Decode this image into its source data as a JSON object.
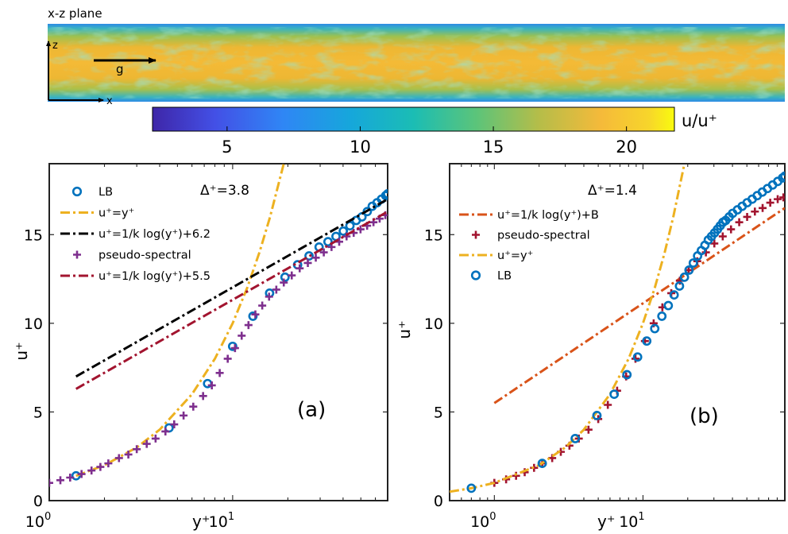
{
  "colors": {
    "lb": "#0072BD",
    "linear": "#EDB120",
    "log_black": "#000000",
    "pseudo": "#7E2F8E",
    "log_dark_red": "#A2142F",
    "log_orange": "#D95319",
    "pseudo_b": "#A2142F"
  },
  "snapshot": {
    "plane_label": "x-z plane",
    "axis_z": "z",
    "axis_x": "x",
    "gravity": "g",
    "colorbar": {
      "label": "u/u⁺",
      "range": [
        2.2,
        21.8
      ],
      "ticks": [
        "5",
        "10",
        "15",
        "20"
      ],
      "colormap": "parula"
    }
  },
  "chart_data": [
    {
      "type": "scatter",
      "panel_label": "(a)",
      "annotation": "Δ⁺=3.8",
      "xlabel": "y⁺",
      "ylabel": "u⁺",
      "x_scale": "log",
      "xlim": [
        1,
        70
      ],
      "ylim": [
        0,
        19
      ],
      "xticks": [
        {
          "value": 1,
          "base": "10",
          "exp": "0"
        },
        {
          "value": 10,
          "base": "10",
          "exp": "1"
        }
      ],
      "yticks": [
        "0",
        "5",
        "10",
        "15"
      ],
      "legend_position": "top-left",
      "series": [
        {
          "name": "LB",
          "kind": "markers",
          "marker": "circle",
          "color_key": "lb",
          "points": [
            [
              1.4,
              1.4
            ],
            [
              4.5,
              4.1
            ],
            [
              7.3,
              6.6
            ],
            [
              10.0,
              8.7
            ],
            [
              12.9,
              10.4
            ],
            [
              15.9,
              11.7
            ],
            [
              19.3,
              12.6
            ],
            [
              22.6,
              13.3
            ],
            [
              26.1,
              13.8
            ],
            [
              29.6,
              14.3
            ],
            [
              33.1,
              14.6
            ],
            [
              36.6,
              14.9
            ],
            [
              40.1,
              15.2
            ],
            [
              43.6,
              15.5
            ],
            [
              47.2,
              15.8
            ],
            [
              50.7,
              16.0
            ],
            [
              54.2,
              16.3
            ],
            [
              57.7,
              16.6
            ],
            [
              61.3,
              16.8
            ],
            [
              64.8,
              17.0
            ],
            [
              68.3,
              17.2
            ],
            [
              70.0,
              17.3
            ]
          ]
        },
        {
          "name": "u⁺=y⁺",
          "kind": "line",
          "dash": "dashdot",
          "color_key": "linear",
          "points": [
            [
              1.4,
              1.4
            ],
            [
              2,
              2
            ],
            [
              3,
              3
            ],
            [
              4,
              4
            ],
            [
              6,
              6
            ],
            [
              8,
              8
            ],
            [
              10,
              10
            ],
            [
              12,
              12
            ],
            [
              14,
              14
            ],
            [
              16,
              16
            ],
            [
              19,
              19
            ]
          ]
        },
        {
          "name": "u⁺=1/k log(y⁺)+6.2",
          "kind": "line",
          "dash": "dashdot",
          "color_key": "log_black",
          "points": [
            [
              1.4,
              7.0
            ],
            [
              70.0,
              17.0
            ]
          ]
        },
        {
          "name": "pseudo-spectral",
          "kind": "markers",
          "marker": "plus",
          "color_key": "pseudo",
          "points": [
            [
              1.0,
              1.0
            ],
            [
              1.15,
              1.15
            ],
            [
              1.3,
              1.3
            ],
            [
              1.5,
              1.5
            ],
            [
              1.7,
              1.7
            ],
            [
              1.9,
              1.9
            ],
            [
              2.1,
              2.1
            ],
            [
              2.4,
              2.4
            ],
            [
              2.7,
              2.6
            ],
            [
              3.0,
              2.9
            ],
            [
              3.4,
              3.2
            ],
            [
              3.8,
              3.5
            ],
            [
              4.3,
              3.9
            ],
            [
              4.8,
              4.3
            ],
            [
              5.4,
              4.8
            ],
            [
              6.1,
              5.3
            ],
            [
              6.9,
              5.9
            ],
            [
              7.7,
              6.5
            ],
            [
              8.5,
              7.2
            ],
            [
              9.4,
              8.0
            ],
            [
              10.3,
              8.6
            ],
            [
              11.2,
              9.3
            ],
            [
              12.2,
              9.9
            ],
            [
              13.3,
              10.5
            ],
            [
              14.5,
              11.0
            ],
            [
              15.8,
              11.5
            ],
            [
              17.3,
              11.9
            ],
            [
              19.0,
              12.3
            ],
            [
              21.0,
              12.7
            ],
            [
              23.2,
              13.1
            ],
            [
              25.7,
              13.4
            ],
            [
              28.4,
              13.7
            ],
            [
              31.4,
              14.0
            ],
            [
              34.6,
              14.3
            ],
            [
              38.1,
              14.6
            ],
            [
              41.8,
              14.9
            ],
            [
              45.7,
              15.1
            ],
            [
              49.8,
              15.3
            ],
            [
              54.1,
              15.5
            ],
            [
              58.6,
              15.7
            ],
            [
              63.3,
              15.9
            ],
            [
              68.0,
              16.1
            ]
          ]
        },
        {
          "name": "u⁺=1/k log(y⁺)+5.5",
          "kind": "line",
          "dash": "dashdot",
          "color_key": "log_dark_red",
          "points": [
            [
              1.4,
              6.3
            ],
            [
              70.0,
              16.3
            ]
          ]
        }
      ]
    },
    {
      "type": "scatter",
      "panel_label": "(b)",
      "annotation": "Δ⁺=1.4",
      "xlabel": "y⁺",
      "ylabel": "u⁺",
      "x_scale": "log",
      "xlim": [
        0.5,
        90
      ],
      "ylim": [
        0,
        19
      ],
      "xticks": [
        {
          "value": 1,
          "base": "10",
          "exp": "0"
        },
        {
          "value": 10,
          "base": "10",
          "exp": "1"
        }
      ],
      "yticks": [
        "0",
        "5",
        "10",
        "15"
      ],
      "legend_position": "top-left",
      "series": [
        {
          "name": "u⁺=1/k log(y⁺)+B",
          "kind": "line",
          "dash": "dashdot",
          "color_key": "log_orange",
          "points": [
            [
              1.0,
              5.5
            ],
            [
              90.0,
              16.5
            ]
          ]
        },
        {
          "name": "pseudo-spectral",
          "kind": "markers",
          "marker": "plus",
          "color_key": "pseudo_b",
          "points": [
            [
              1.0,
              1.0
            ],
            [
              1.2,
              1.2
            ],
            [
              1.4,
              1.4
            ],
            [
              1.6,
              1.6
            ],
            [
              1.85,
              1.85
            ],
            [
              2.1,
              2.1
            ],
            [
              2.45,
              2.4
            ],
            [
              2.8,
              2.75
            ],
            [
              3.2,
              3.1
            ],
            [
              3.7,
              3.5
            ],
            [
              4.3,
              4.0
            ],
            [
              5.0,
              4.6
            ],
            [
              5.8,
              5.4
            ],
            [
              6.7,
              6.2
            ],
            [
              7.7,
              7.0
            ],
            [
              8.9,
              8.0
            ],
            [
              10.3,
              9.0
            ],
            [
              11.8,
              10.0
            ],
            [
              13.5,
              10.9
            ],
            [
              15.5,
              11.7
            ],
            [
              17.7,
              12.4
            ],
            [
              20.3,
              13.0
            ],
            [
              23.2,
              13.5
            ],
            [
              26.5,
              14.0
            ],
            [
              30.2,
              14.5
            ],
            [
              34.4,
              14.9
            ],
            [
              39.1,
              15.3
            ],
            [
              44.4,
              15.7
            ],
            [
              50.2,
              16.0
            ],
            [
              56.6,
              16.3
            ],
            [
              63.8,
              16.5
            ],
            [
              71.8,
              16.8
            ],
            [
              80.6,
              17.0
            ],
            [
              88.0,
              17.1
            ]
          ]
        },
        {
          "name": "u⁺=y⁺",
          "kind": "line",
          "dash": "dashdot",
          "color_key": "linear",
          "points": [
            [
              0.5,
              0.5
            ],
            [
              0.7,
              0.7
            ],
            [
              1,
              1
            ],
            [
              2,
              2
            ],
            [
              3,
              3
            ],
            [
              4,
              4
            ],
            [
              6,
              6
            ],
            [
              8,
              8
            ],
            [
              10,
              10
            ],
            [
              12,
              12
            ],
            [
              14,
              14
            ],
            [
              16,
              16
            ],
            [
              19,
              19
            ]
          ]
        },
        {
          "name": "LB",
          "kind": "markers",
          "marker": "circle",
          "color_key": "lb",
          "points": [
            [
              0.7,
              0.7
            ],
            [
              2.1,
              2.1
            ],
            [
              3.5,
              3.5
            ],
            [
              4.9,
              4.8
            ],
            [
              6.4,
              6.0
            ],
            [
              7.8,
              7.1
            ],
            [
              9.2,
              8.1
            ],
            [
              10.6,
              9.0
            ],
            [
              12.0,
              9.7
            ],
            [
              13.4,
              10.4
            ],
            [
              14.8,
              11.0
            ],
            [
              16.2,
              11.6
            ],
            [
              17.6,
              12.1
            ],
            [
              19.0,
              12.6
            ],
            [
              20.4,
              13.0
            ],
            [
              21.8,
              13.4
            ],
            [
              23.3,
              13.8
            ],
            [
              24.7,
              14.1
            ],
            [
              26.1,
              14.4
            ],
            [
              27.5,
              14.7
            ],
            [
              28.9,
              14.9
            ],
            [
              30.3,
              15.1
            ],
            [
              31.7,
              15.3
            ],
            [
              33.1,
              15.5
            ],
            [
              34.5,
              15.7
            ],
            [
              36.0,
              15.8
            ],
            [
              38.0,
              16.0
            ],
            [
              40.1,
              16.2
            ],
            [
              43.2,
              16.4
            ],
            [
              46.5,
              16.6
            ],
            [
              50.2,
              16.8
            ],
            [
              54.3,
              17.0
            ],
            [
              58.7,
              17.2
            ],
            [
              63.5,
              17.4
            ],
            [
              68.8,
              17.6
            ],
            [
              74.5,
              17.8
            ],
            [
              80.6,
              18.0
            ],
            [
              87.0,
              18.2
            ],
            [
              90.0,
              18.3
            ]
          ]
        }
      ]
    }
  ]
}
